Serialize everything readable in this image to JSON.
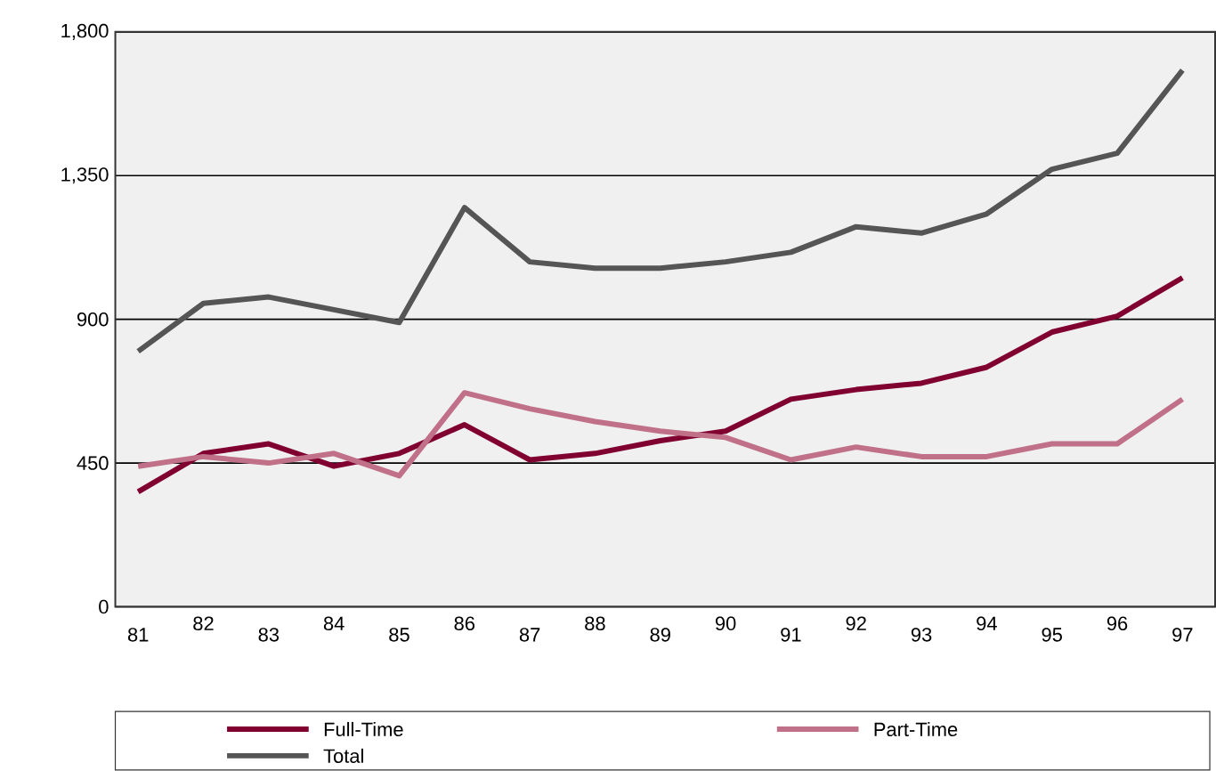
{
  "chart_data": {
    "type": "line",
    "categories": [
      "81",
      "82",
      "83",
      "84",
      "85",
      "86",
      "87",
      "88",
      "89",
      "90",
      "91",
      "92",
      "93",
      "94",
      "95",
      "96",
      "97"
    ],
    "series": [
      {
        "name": "Full-Time",
        "color": "#800030",
        "values": [
          360,
          480,
          510,
          440,
          480,
          570,
          460,
          480,
          520,
          550,
          650,
          680,
          700,
          750,
          860,
          910,
          1030
        ]
      },
      {
        "name": "Part-Time",
        "color": "#c07088",
        "values": [
          440,
          470,
          450,
          480,
          410,
          670,
          620,
          580,
          550,
          530,
          460,
          500,
          470,
          470,
          510,
          510,
          650
        ]
      },
      {
        "name": "Total",
        "color": "#555555",
        "values": [
          800,
          950,
          970,
          930,
          890,
          1250,
          1080,
          1060,
          1060,
          1080,
          1110,
          1190,
          1170,
          1230,
          1370,
          1420,
          1680
        ]
      }
    ],
    "ylim": [
      0,
      1800
    ],
    "yticks": [
      0,
      450,
      {
        "value": 900,
        "label": "900"
      },
      {
        "value": 1350,
        "label": "1,350"
      },
      {
        "value": 1800,
        "label": "1,800"
      }
    ],
    "grid": "y",
    "legend": "bottom",
    "marker": "none",
    "line_style": "solid"
  }
}
